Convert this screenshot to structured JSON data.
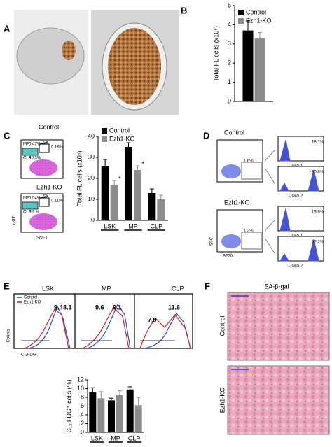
{
  "panels": {
    "labels": [
      "A",
      "B",
      "C",
      "D",
      "E",
      "F"
    ],
    "C": {
      "groups": [
        "Control",
        "Ezh1-KO"
      ],
      "gates": [
        "MP",
        "LSK",
        "CLP"
      ],
      "control_pct": [
        "0.47%",
        "0.18%",
        "6.23%"
      ],
      "ko_pct": [
        "0.54%",
        "0.11%",
        "0.2 %"
      ],
      "x_axis": "Sca-1",
      "y_axis": "cKIT"
    },
    "D": {
      "groups": [
        "Control",
        "Ezh1-KO"
      ],
      "gate_pct": [
        "1.6%",
        "1.3%"
      ],
      "x_axis": "B220",
      "y_axis": "SSC",
      "hist_labels": [
        "CD45.1",
        "CD45.2",
        "CD45.1",
        "CD45.2"
      ],
      "hist_pct": [
        "18.1%",
        "80.8%",
        "13.9%",
        "82.2%"
      ]
    },
    "E": {
      "legend": [
        "Control",
        "Ezh1-KO"
      ],
      "y_axis": "Counts",
      "x_axis": "C₁₂FDG",
      "histograms": [
        {
          "title": "LSK",
          "control": "9.4",
          "ko": "8.1"
        },
        {
          "title": "MP",
          "control": "9.1",
          "ko": "9.6"
        },
        {
          "title": "CLP",
          "control": "11.6",
          "ko": "7.9"
        }
      ]
    },
    "F": {
      "title": "SA-β-gal",
      "rows": [
        "Control",
        "Ezh1-KO"
      ]
    }
  },
  "chart_data": [
    {
      "type": "bar",
      "ylabel": "Total FL cells (x10⁶)",
      "ylim": [
        0,
        5
      ],
      "yticks": [
        0,
        1,
        2,
        3,
        4,
        5
      ],
      "series": [
        {
          "name": "Control",
          "color": "#000000",
          "values": [
            3.7
          ],
          "errors": [
            0.5
          ]
        },
        {
          "name": "Ezh1-KO",
          "color": "#8c8c8c",
          "values": [
            3.3
          ],
          "errors": [
            0.3
          ]
        }
      ]
    },
    {
      "type": "bar",
      "ylabel": "Total FL cells (x10⁶)",
      "ylim": [
        0,
        40
      ],
      "yticks": [
        0,
        10,
        20,
        30,
        40
      ],
      "categories": [
        "LSK",
        "MP",
        "CLP"
      ],
      "annotations": [
        "*",
        "*"
      ],
      "series": [
        {
          "name": "Control",
          "color": "#000000",
          "values": [
            26,
            35,
            13
          ],
          "errors": [
            3,
            2,
            2
          ]
        },
        {
          "name": "Ezh1-KO",
          "color": "#8c8c8c",
          "values": [
            17,
            24,
            10
          ],
          "errors": [
            2,
            2,
            2
          ]
        }
      ]
    },
    {
      "type": "bar",
      "ylabel": "C₁₂ FDG⁺ cells (%)",
      "ylim": [
        0,
        12
      ],
      "yticks": [
        0,
        2,
        4,
        6,
        8,
        10,
        12
      ],
      "categories": [
        "LSK",
        "MP",
        "CLP"
      ],
      "series": [
        {
          "name": "Control",
          "color": "#000000",
          "values": [
            9.2,
            7.3,
            9.8
          ],
          "errors": [
            1,
            0.5,
            0.6
          ]
        },
        {
          "name": "Ezh1-KO",
          "color": "#8c8c8c",
          "values": [
            7.8,
            8.5,
            6.2
          ],
          "errors": [
            1.5,
            1,
            1.8
          ]
        }
      ]
    }
  ]
}
